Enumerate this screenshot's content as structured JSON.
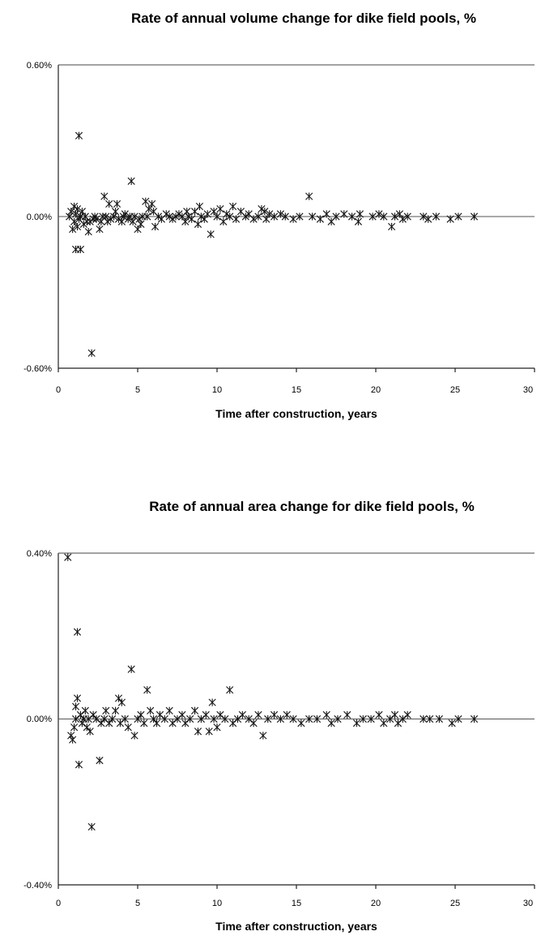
{
  "chart_data": [
    {
      "type": "scatter",
      "title": "Rate of annual volume change for dike field pools, %",
      "xlabel": "Time after construction, years",
      "ylabel": "",
      "xlim": [
        0,
        30
      ],
      "ylim": [
        -0.6,
        0.6
      ],
      "x_ticks": [
        "0",
        "5",
        "10",
        "15",
        "20",
        "25",
        "30"
      ],
      "y_ticks": [
        "0.60%",
        "0.00%",
        "-0.60%"
      ],
      "grid": "top border line and zero line only",
      "series": [
        {
          "marker": "asterisk",
          "points": [
            [
              0.7,
              0.0
            ],
            [
              0.8,
              0.02
            ],
            [
              0.9,
              -0.05
            ],
            [
              1.0,
              0.04
            ],
            [
              1.0,
              -0.02
            ],
            [
              1.1,
              0.01
            ],
            [
              1.1,
              -0.13
            ],
            [
              1.2,
              0.03
            ],
            [
              1.2,
              -0.04
            ],
            [
              1.3,
              0.32
            ],
            [
              1.3,
              -0.01
            ],
            [
              1.4,
              -0.13
            ],
            [
              1.4,
              0.0
            ],
            [
              1.5,
              0.02
            ],
            [
              1.6,
              -0.03
            ],
            [
              1.7,
              0.0
            ],
            [
              1.8,
              -0.02
            ],
            [
              1.9,
              -0.06
            ],
            [
              2.0,
              -0.02
            ],
            [
              2.1,
              -0.54
            ],
            [
              2.2,
              -0.01
            ],
            [
              2.3,
              0.0
            ],
            [
              2.4,
              -0.01
            ],
            [
              2.6,
              -0.05
            ],
            [
              2.7,
              -0.02
            ],
            [
              2.8,
              0.0
            ],
            [
              2.9,
              0.08
            ],
            [
              3.0,
              0.0
            ],
            [
              3.1,
              -0.02
            ],
            [
              3.2,
              0.05
            ],
            [
              3.3,
              -0.01
            ],
            [
              3.5,
              0.0
            ],
            [
              3.6,
              0.02
            ],
            [
              3.7,
              0.05
            ],
            [
              3.8,
              -0.01
            ],
            [
              4.0,
              -0.02
            ],
            [
              4.1,
              0.0
            ],
            [
              4.2,
              0.01
            ],
            [
              4.4,
              -0.01
            ],
            [
              4.5,
              0.0
            ],
            [
              4.6,
              0.14
            ],
            [
              4.7,
              -0.02
            ],
            [
              4.8,
              0.0
            ],
            [
              5.0,
              -0.05
            ],
            [
              5.1,
              -0.01
            ],
            [
              5.2,
              -0.03
            ],
            [
              5.3,
              0.0
            ],
            [
              5.5,
              0.06
            ],
            [
              5.6,
              0.0
            ],
            [
              5.7,
              0.03
            ],
            [
              5.9,
              0.05
            ],
            [
              6.0,
              0.02
            ],
            [
              6.1,
              -0.04
            ],
            [
              6.3,
              0.0
            ],
            [
              6.5,
              -0.01
            ],
            [
              6.8,
              0.01
            ],
            [
              7.0,
              0.0
            ],
            [
              7.2,
              -0.01
            ],
            [
              7.4,
              0.0
            ],
            [
              7.6,
              0.01
            ],
            [
              7.8,
              0.0
            ],
            [
              8.0,
              -0.02
            ],
            [
              8.1,
              0.02
            ],
            [
              8.2,
              0.0
            ],
            [
              8.4,
              -0.01
            ],
            [
              8.6,
              0.02
            ],
            [
              8.8,
              -0.03
            ],
            [
              8.9,
              0.04
            ],
            [
              9.0,
              0.0
            ],
            [
              9.2,
              -0.01
            ],
            [
              9.4,
              0.01
            ],
            [
              9.6,
              -0.07
            ],
            [
              9.8,
              0.02
            ],
            [
              10.0,
              0.0
            ],
            [
              10.2,
              0.03
            ],
            [
              10.4,
              -0.02
            ],
            [
              10.6,
              0.01
            ],
            [
              10.8,
              0.0
            ],
            [
              11.0,
              0.04
            ],
            [
              11.2,
              -0.01
            ],
            [
              11.5,
              0.02
            ],
            [
              11.8,
              0.0
            ],
            [
              12.0,
              0.01
            ],
            [
              12.3,
              -0.01
            ],
            [
              12.6,
              0.0
            ],
            [
              12.8,
              0.03
            ],
            [
              13.0,
              0.02
            ],
            [
              13.1,
              -0.01
            ],
            [
              13.3,
              0.01
            ],
            [
              13.6,
              0.0
            ],
            [
              14.0,
              0.01
            ],
            [
              14.3,
              0.0
            ],
            [
              14.8,
              -0.01
            ],
            [
              15.2,
              0.0
            ],
            [
              15.8,
              0.08
            ],
            [
              16.0,
              0.0
            ],
            [
              16.5,
              -0.01
            ],
            [
              16.9,
              0.01
            ],
            [
              17.2,
              -0.02
            ],
            [
              17.5,
              0.0
            ],
            [
              18.0,
              0.01
            ],
            [
              18.5,
              0.0
            ],
            [
              18.9,
              -0.02
            ],
            [
              19.0,
              0.01
            ],
            [
              19.8,
              0.0
            ],
            [
              20.2,
              0.01
            ],
            [
              20.5,
              0.0
            ],
            [
              21.0,
              -0.04
            ],
            [
              21.2,
              0.0
            ],
            [
              21.5,
              0.01
            ],
            [
              21.7,
              -0.01
            ],
            [
              22.0,
              0.0
            ],
            [
              23.0,
              0.0
            ],
            [
              23.3,
              -0.01
            ],
            [
              23.8,
              0.0
            ],
            [
              24.7,
              -0.01
            ],
            [
              25.2,
              0.0
            ],
            [
              26.2,
              0.0
            ]
          ]
        }
      ]
    },
    {
      "type": "scatter",
      "title": "Rate of annual area change for dike field pools, %",
      "xlabel": "Time after construction, years",
      "ylabel": "",
      "xlim": [
        0,
        30
      ],
      "ylim": [
        -0.4,
        0.4
      ],
      "x_ticks": [
        "0",
        "5",
        "10",
        "15",
        "20",
        "25",
        "30"
      ],
      "y_ticks": [
        "0.40%",
        "0.00%",
        "-0.40%"
      ],
      "grid": "top border line and zero line only",
      "series": [
        {
          "marker": "asterisk",
          "points": [
            [
              0.6,
              0.39
            ],
            [
              0.8,
              -0.04
            ],
            [
              0.9,
              -0.05
            ],
            [
              1.0,
              -0.02
            ],
            [
              1.1,
              0.03
            ],
            [
              1.1,
              0.0
            ],
            [
              1.2,
              0.21
            ],
            [
              1.2,
              0.05
            ],
            [
              1.3,
              -0.11
            ],
            [
              1.4,
              0.01
            ],
            [
              1.5,
              -0.01
            ],
            [
              1.6,
              0.0
            ],
            [
              1.7,
              0.02
            ],
            [
              1.8,
              -0.02
            ],
            [
              1.9,
              0.0
            ],
            [
              2.0,
              -0.03
            ],
            [
              2.1,
              -0.26
            ],
            [
              2.2,
              0.01
            ],
            [
              2.4,
              0.0
            ],
            [
              2.6,
              -0.1
            ],
            [
              2.7,
              -0.01
            ],
            [
              2.9,
              0.0
            ],
            [
              3.0,
              0.02
            ],
            [
              3.2,
              -0.01
            ],
            [
              3.4,
              0.0
            ],
            [
              3.6,
              0.02
            ],
            [
              3.8,
              0.05
            ],
            [
              3.9,
              -0.01
            ],
            [
              4.0,
              0.04
            ],
            [
              4.2,
              0.0
            ],
            [
              4.4,
              -0.02
            ],
            [
              4.6,
              0.12
            ],
            [
              4.8,
              -0.04
            ],
            [
              5.0,
              0.0
            ],
            [
              5.2,
              0.01
            ],
            [
              5.4,
              -0.01
            ],
            [
              5.6,
              0.07
            ],
            [
              5.8,
              0.02
            ],
            [
              6.0,
              0.0
            ],
            [
              6.2,
              -0.01
            ],
            [
              6.4,
              0.01
            ],
            [
              6.7,
              0.0
            ],
            [
              7.0,
              0.02
            ],
            [
              7.2,
              -0.01
            ],
            [
              7.5,
              0.0
            ],
            [
              7.8,
              0.01
            ],
            [
              8.0,
              -0.01
            ],
            [
              8.3,
              0.0
            ],
            [
              8.6,
              0.02
            ],
            [
              8.8,
              -0.03
            ],
            [
              9.0,
              0.0
            ],
            [
              9.3,
              0.01
            ],
            [
              9.5,
              -0.03
            ],
            [
              9.7,
              0.04
            ],
            [
              9.8,
              0.0
            ],
            [
              10.0,
              -0.02
            ],
            [
              10.2,
              0.01
            ],
            [
              10.5,
              0.0
            ],
            [
              10.8,
              0.07
            ],
            [
              11.0,
              -0.01
            ],
            [
              11.3,
              0.0
            ],
            [
              11.6,
              0.01
            ],
            [
              12.0,
              0.0
            ],
            [
              12.3,
              -0.01
            ],
            [
              12.6,
              0.01
            ],
            [
              12.9,
              -0.04
            ],
            [
              13.2,
              0.0
            ],
            [
              13.6,
              0.01
            ],
            [
              14.0,
              0.0
            ],
            [
              14.4,
              0.01
            ],
            [
              14.8,
              0.0
            ],
            [
              15.3,
              -0.01
            ],
            [
              15.8,
              0.0
            ],
            [
              16.3,
              0.0
            ],
            [
              16.9,
              0.01
            ],
            [
              17.2,
              -0.01
            ],
            [
              17.6,
              0.0
            ],
            [
              18.2,
              0.01
            ],
            [
              18.8,
              -0.01
            ],
            [
              19.2,
              0.0
            ],
            [
              19.7,
              0.0
            ],
            [
              20.2,
              0.01
            ],
            [
              20.5,
              -0.01
            ],
            [
              20.9,
              0.0
            ],
            [
              21.2,
              0.01
            ],
            [
              21.4,
              -0.01
            ],
            [
              21.7,
              0.0
            ],
            [
              22.0,
              0.01
            ],
            [
              23.0,
              0.0
            ],
            [
              23.4,
              0.0
            ],
            [
              24.0,
              0.0
            ],
            [
              24.8,
              -0.01
            ],
            [
              25.2,
              0.0
            ],
            [
              26.2,
              0.0
            ]
          ]
        }
      ]
    }
  ]
}
